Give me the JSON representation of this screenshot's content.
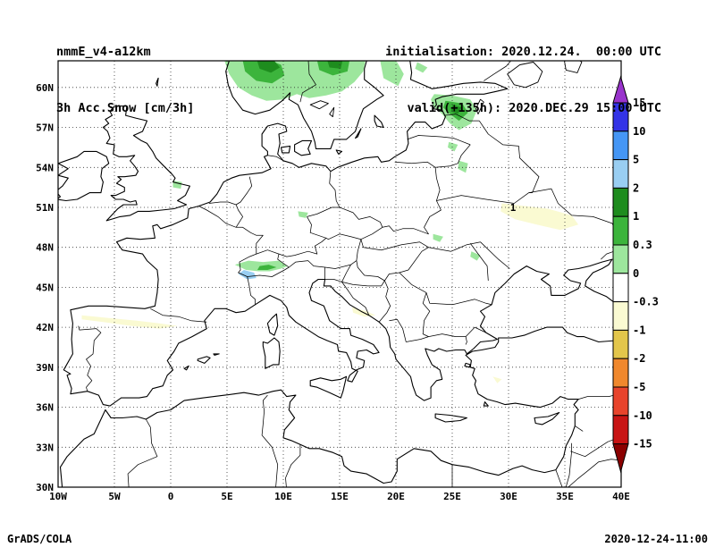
{
  "header": {
    "line1": "nmmE_v4-a12km",
    "line2": "3h Acc.Snow [cm/3h]",
    "init": "initialisation: 2020.12.24.  00:00 UTC",
    "valid": "valid(+135h): 2020.DEC.29 15:00 UTC"
  },
  "footer": {
    "left": "GrADS/COLA",
    "right": "2020-12-24-11:00"
  },
  "chart_data": {
    "type": "heatmap",
    "title": "3h Acc.Snow [cm/3h]",
    "model_run": "nmmE_v4-a12km",
    "initialisation": "2020.12.24. 00:00 UTC",
    "valid_time": "2020.DEC.29 15:00 UTC (+135h)",
    "projection": "latlon",
    "grid": true,
    "x_axis": {
      "label": "longitude",
      "ticks": [
        "10W",
        "5W",
        "0",
        "5E",
        "10E",
        "15E",
        "20E",
        "25E",
        "30E",
        "35E",
        "40E"
      ],
      "values": [
        -10,
        -5,
        0,
        5,
        10,
        15,
        20,
        25,
        30,
        35,
        40
      ],
      "range": [
        -10,
        40
      ]
    },
    "y_axis": {
      "label": "latitude",
      "ticks": [
        "30N",
        "33N",
        "36N",
        "39N",
        "42N",
        "45N",
        "48N",
        "51N",
        "54N",
        "57N",
        "60N"
      ],
      "values": [
        30,
        33,
        36,
        39,
        42,
        45,
        48,
        51,
        54,
        57,
        60
      ],
      "range": [
        30,
        62
      ]
    },
    "colorbar": {
      "unit": "cm/3h",
      "orientation": "vertical-right",
      "tick_labels": [
        "15",
        "10",
        "5",
        "2",
        "1",
        "0.3",
        "0",
        "-0.3",
        "-1",
        "-2",
        "-5",
        "-10",
        "-15"
      ],
      "tick_values": [
        15,
        10,
        5,
        2,
        1,
        0.3,
        0,
        -0.3,
        -1,
        -2,
        -5,
        -10,
        -15
      ],
      "colors_top_to_bottom": [
        "#9933cc",
        "#3333e6",
        "#4596f5",
        "#99cef2",
        "#1e8c1e",
        "#3cb43c",
        "#9de69d",
        "#ffffff",
        "#fafad2",
        "#e3c64b",
        "#f0882d",
        "#e8442c",
        "#c81414",
        "#8b0000"
      ]
    },
    "shaded_regions": [
      {
        "area": "southern Norway and central Sweden",
        "value": "0 to 2 cm (light to dark green)"
      },
      {
        "area": "Aland / Gulf of Bothnia",
        "value": "0-0.3 cm (light green)"
      },
      {
        "area": "Estonia / NW Russia near Pskov",
        "value": "0.3-2 cm (greens)"
      },
      {
        "area": "western Alps",
        "value": "2-5 cm core (pale blue) within green"
      },
      {
        "area": "E England, C Germany, Carpathians, Moldova",
        "value": "0-0.3 cm (light green spots)"
      },
      {
        "area": "Ukraine belt, N Spain, S Adriatic coast",
        "value": "-0.3 to -1 (cream shading)"
      }
    ],
    "annotations": [
      {
        "text": "1",
        "lon": 30.4,
        "lat": 51.0
      }
    ]
  }
}
